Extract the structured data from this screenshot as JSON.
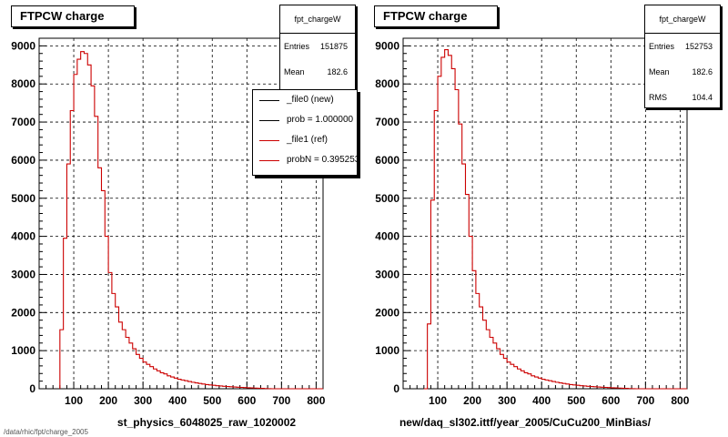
{
  "footer_text": "/data/rhic/fpt/charge_2005",
  "chart_data": [
    {
      "type": "line",
      "title": "FTPCW charge",
      "xlabel": "st_physics_6048025_raw_1020002",
      "ylabel": "",
      "xlim": [
        0,
        820
      ],
      "ylim": [
        0,
        9200
      ],
      "grid": true,
      "x_ticks": [
        100,
        200,
        300,
        400,
        500,
        600,
        700,
        800
      ],
      "y_ticks": [
        0,
        1000,
        2000,
        3000,
        4000,
        5000,
        6000,
        7000,
        8000,
        9000
      ],
      "bin_width": 10,
      "x_start": 60,
      "stats": {
        "name": "fpt_chargeW",
        "rows": [
          {
            "label": "Entries",
            "value": "151875"
          },
          {
            "label": "Mean",
            "value": "182.6"
          }
        ]
      },
      "legend": {
        "placement": "top-right",
        "entries": [
          {
            "label": "_file0 (new)",
            "color": "#000000"
          },
          {
            "label": "prob = 1.000000",
            "color": "#000000"
          },
          {
            "label": "_file1 (ref)",
            "color": "#cc0000"
          },
          {
            "label": "probN = 0.395253",
            "color": "#cc0000"
          }
        ]
      },
      "series": [
        {
          "name": "_file1 (ref)",
          "color": "#cc0000",
          "values": [
            1550,
            3950,
            5900,
            7300,
            8250,
            8650,
            8850,
            8800,
            8500,
            7950,
            7150,
            5800,
            5200,
            4000,
            3050,
            2500,
            2150,
            1750,
            1550,
            1350,
            1200,
            1050,
            900,
            800,
            700,
            640,
            580,
            520,
            470,
            420,
            390,
            340,
            310,
            280,
            250,
            230,
            210,
            190,
            170,
            155,
            140,
            125,
            110,
            100,
            90,
            80,
            72,
            65,
            58,
            52,
            46,
            41,
            36,
            31,
            26,
            22,
            18,
            14,
            10,
            6,
            3,
            0,
            0,
            0,
            0,
            0,
            0,
            0,
            0,
            0,
            0,
            0,
            0,
            0,
            0,
            0
          ]
        }
      ]
    },
    {
      "type": "line",
      "title": "FTPCW charge",
      "xlabel": "new/daq_sl302.ittf/year_2005/CuCu200_MinBias/",
      "ylabel": "",
      "xlim": [
        0,
        820
      ],
      "ylim": [
        0,
        9200
      ],
      "grid": true,
      "x_ticks": [
        100,
        200,
        300,
        400,
        500,
        600,
        700,
        800
      ],
      "y_ticks": [
        0,
        1000,
        2000,
        3000,
        4000,
        5000,
        6000,
        7000,
        8000,
        9000
      ],
      "bin_width": 10,
      "x_start": 60,
      "stats": {
        "name": "fpt_chargeW",
        "rows": [
          {
            "label": "Entries",
            "value": "152753"
          },
          {
            "label": "Mean",
            "value": "182.6"
          },
          {
            "label": "RMS",
            "value": "104.4"
          }
        ]
      },
      "series": [
        {
          "name": "",
          "color": "#cc0000",
          "values": [
            0,
            1700,
            4950,
            7300,
            8200,
            8700,
            8900,
            8750,
            8400,
            7850,
            6950,
            5900,
            5100,
            4000,
            3100,
            2500,
            2150,
            1800,
            1550,
            1350,
            1200,
            1050,
            900,
            800,
            700,
            640,
            580,
            520,
            470,
            420,
            390,
            340,
            310,
            280,
            250,
            230,
            210,
            190,
            170,
            155,
            140,
            125,
            110,
            100,
            90,
            80,
            72,
            65,
            58,
            52,
            46,
            41,
            36,
            31,
            26,
            22,
            18,
            14,
            10,
            6,
            3,
            0,
            0,
            0,
            0,
            0,
            0,
            0,
            0,
            0,
            0,
            0,
            0,
            0,
            0,
            0
          ]
        }
      ]
    }
  ]
}
